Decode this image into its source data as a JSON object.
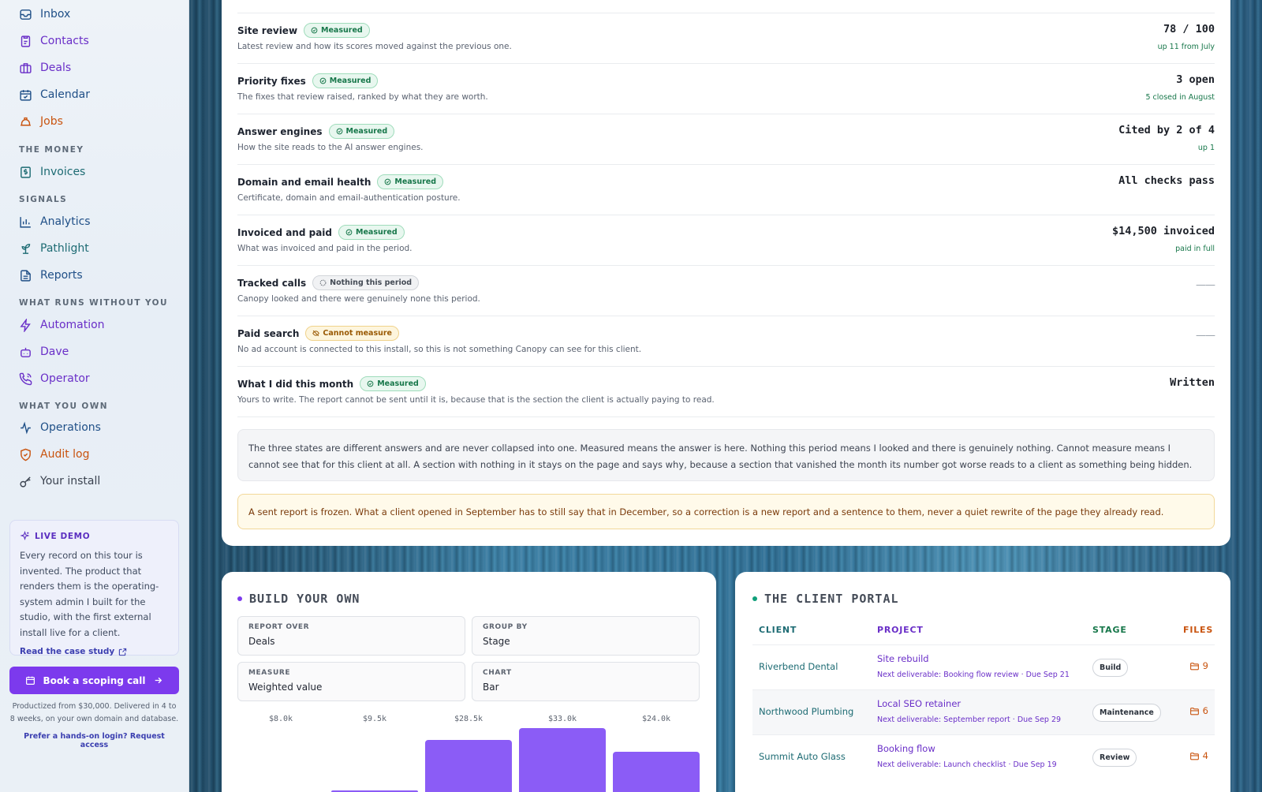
{
  "sidebar": {
    "items": {
      "inbox": "Inbox",
      "contacts": "Contacts",
      "deals": "Deals",
      "calendar": "Calendar",
      "jobs": "Jobs",
      "invoices": "Invoices",
      "analytics": "Analytics",
      "pathlight": "Pathlight",
      "reports": "Reports",
      "automation": "Automation",
      "dave": "Dave",
      "operator": "Operator",
      "operations": "Operations",
      "audit_log": "Audit log",
      "your_install": "Your install"
    },
    "sections": {
      "money": "THE MONEY",
      "signals": "SIGNALS",
      "runs": "WHAT RUNS WITHOUT YOU",
      "own": "WHAT YOU OWN"
    },
    "demo": {
      "title": "LIVE DEMO",
      "text": "Every record on this tour is invented. The product that renders them is the operating-system admin I built for the studio, with the first external install live for a client.",
      "link": "Read the case study"
    },
    "cta": "Book a scoping call",
    "fine_print": "Productized from $30,000. Delivered in 4 to 8 weeks, on your own domain and database.",
    "access_link": "Prefer a hands-on login? Request access"
  },
  "report": {
    "rows": [
      {
        "title": "Site review",
        "badge": "Measured",
        "sub": "Latest review and how its scores moved against the previous one.",
        "value": "78 / 100",
        "delta": "up 11 from July"
      },
      {
        "title": "Priority fixes",
        "badge": "Measured",
        "sub": "The fixes that review raised, ranked by what they are worth.",
        "value": "3 open",
        "delta": "5 closed in August"
      },
      {
        "title": "Answer engines",
        "badge": "Measured",
        "sub": "How the site reads to the AI answer engines.",
        "value": "Cited by 2 of 4",
        "delta": "up 1"
      },
      {
        "title": "Domain and email health",
        "badge": "Measured",
        "sub": "Certificate, domain and email-authentication posture.",
        "value": "All checks pass",
        "delta": ""
      },
      {
        "title": "Invoiced and paid",
        "badge": "Measured",
        "sub": "What was invoiced and paid in the period.",
        "value": "$14,500 invoiced",
        "delta": "paid in full"
      },
      {
        "title": "Tracked calls",
        "badge": "Nothing this period",
        "sub": "Canopy looked and there were genuinely none this period.",
        "value": "——",
        "delta": ""
      },
      {
        "title": "Paid search",
        "badge": "Cannot measure",
        "sub": "No ad account is connected to this install, so this is not something Canopy can see for this client.",
        "value": "——",
        "delta": ""
      },
      {
        "title": "What I did this month",
        "badge": "Measured",
        "sub": "Yours to write. The report cannot be sent until it is, because that is the section the client is actually paying to read.",
        "value": "Written",
        "delta": ""
      }
    ],
    "note": "The three states are different answers and are never collapsed into one. Measured means the answer is here. Nothing this period means I looked and there is genuinely nothing. Cannot measure means I cannot see that for this client at all. A section with nothing in it stays on the page and says why, because a section that vanished the month its number got worse reads to a client as something being hidden.",
    "warning": "A sent report is frozen. What a client opened in September has to still say that in December, so a correction is a new report and a sentence to them, never a quiet rewrite of the page they already read."
  },
  "builder": {
    "title": "BUILD YOUR OWN",
    "fields": {
      "report_over": {
        "label": "REPORT OVER",
        "value": "Deals"
      },
      "group_by": {
        "label": "GROUP BY",
        "value": "Stage"
      },
      "measure": {
        "label": "MEASURE",
        "value": "Weighted value"
      },
      "chart": {
        "label": "CHART",
        "value": "Bar"
      }
    },
    "colors": {
      "bar": "#8b5cf6",
      "dot": "#7c3aed"
    }
  },
  "chart_data": {
    "type": "bar",
    "values": [
      8.0,
      9.5,
      28.5,
      33.0,
      24.0
    ],
    "value_labels": [
      "$8.0k",
      "$9.5k",
      "$28.5k",
      "$33.0k",
      "$24.0k"
    ]
  },
  "portal": {
    "title": "THE CLIENT PORTAL",
    "headers": {
      "client": "CLIENT",
      "project": "PROJECT",
      "stage": "STAGE",
      "files": "FILES"
    },
    "rows": [
      {
        "client": "Riverbend Dental",
        "project": "Site rebuild",
        "next": "Next deliverable: Booking flow review · Due Sep 21",
        "stage": "Build",
        "files": "9"
      },
      {
        "client": "Northwood Plumbing",
        "project": "Local SEO retainer",
        "next": "Next deliverable: September report · Due Sep 29",
        "stage": "Maintenance",
        "files": "6"
      },
      {
        "client": "Summit Auto Glass",
        "project": "Booking flow",
        "next": "Next deliverable: Launch checklist · Due Sep 19",
        "stage": "Review",
        "files": "4"
      }
    ]
  }
}
